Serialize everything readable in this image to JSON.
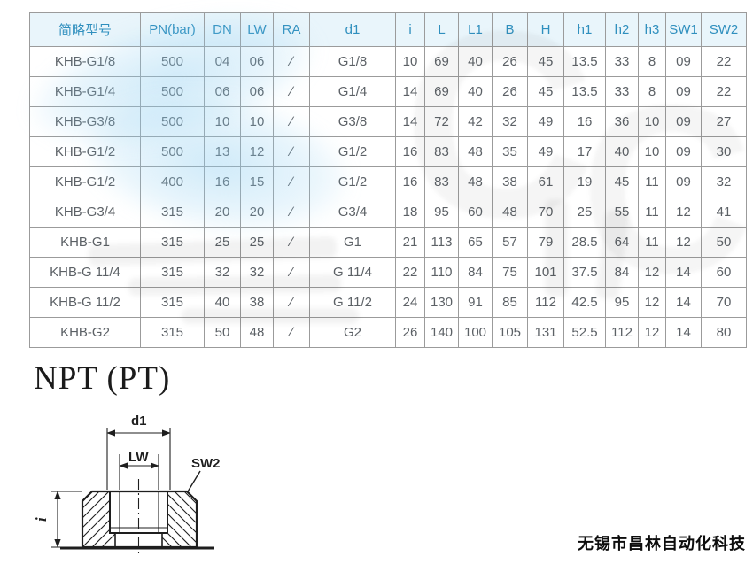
{
  "table": {
    "headers": [
      "简略型号",
      "PN(bar)",
      "DN",
      "LW",
      "RA",
      "d1",
      "i",
      "L",
      "L1",
      "B",
      "H",
      "h1",
      "h2",
      "h3",
      "SW1",
      "SW2"
    ],
    "rows": [
      [
        "KHB-G1/8",
        "500",
        "04",
        "06",
        "∕",
        "G1/8",
        "10",
        "69",
        "40",
        "26",
        "45",
        "13.5",
        "33",
        "8",
        "09",
        "22"
      ],
      [
        "KHB-G1/4",
        "500",
        "06",
        "06",
        "∕",
        "G1/4",
        "14",
        "69",
        "40",
        "26",
        "45",
        "13.5",
        "33",
        "8",
        "09",
        "22"
      ],
      [
        "KHB-G3/8",
        "500",
        "10",
        "10",
        "∕",
        "G3/8",
        "14",
        "72",
        "42",
        "32",
        "49",
        "16",
        "36",
        "10",
        "09",
        "27"
      ],
      [
        "KHB-G1/2",
        "500",
        "13",
        "12",
        "∕",
        "G1/2",
        "16",
        "83",
        "48",
        "35",
        "49",
        "17",
        "40",
        "10",
        "09",
        "30"
      ],
      [
        "KHB-G1/2",
        "400",
        "16",
        "15",
        "∕",
        "G1/2",
        "16",
        "83",
        "48",
        "38",
        "61",
        "19",
        "45",
        "11",
        "09",
        "32"
      ],
      [
        "KHB-G3/4",
        "315",
        "20",
        "20",
        "∕",
        "G3/4",
        "18",
        "95",
        "60",
        "48",
        "70",
        "25",
        "55",
        "11",
        "12",
        "41"
      ],
      [
        "KHB-G1",
        "315",
        "25",
        "25",
        "∕",
        "G1",
        "21",
        "113",
        "65",
        "57",
        "79",
        "28.5",
        "64",
        "11",
        "12",
        "50"
      ],
      [
        "KHB-G 11/4",
        "315",
        "32",
        "32",
        "∕",
        "G 11/4",
        "22",
        "110",
        "84",
        "75",
        "101",
        "37.5",
        "84",
        "12",
        "14",
        "60"
      ],
      [
        "KHB-G 11/2",
        "315",
        "40",
        "38",
        "∕",
        "G 11/2",
        "24",
        "130",
        "91",
        "85",
        "112",
        "42.5",
        "95",
        "12",
        "14",
        "70"
      ],
      [
        "KHB-G2",
        "315",
        "50",
        "48",
        "∕",
        "G2",
        "26",
        "140",
        "100",
        "105",
        "131",
        "52.5",
        "112",
        "12",
        "14",
        "80"
      ]
    ]
  },
  "section": {
    "heading": "NPT (PT)"
  },
  "drawing": {
    "labels": {
      "d1": "d1",
      "lw": "LW",
      "sw2": "SW2",
      "i": "i"
    }
  },
  "footer": {
    "company": "无锡市昌林自动化科技"
  },
  "colors": {
    "header_bg": "#e9f5fb",
    "header_text": "#2f8fbe",
    "cell_text": "#5c6166",
    "border": "#9b9b9b",
    "watermark_blue": "#8ccdf0"
  }
}
